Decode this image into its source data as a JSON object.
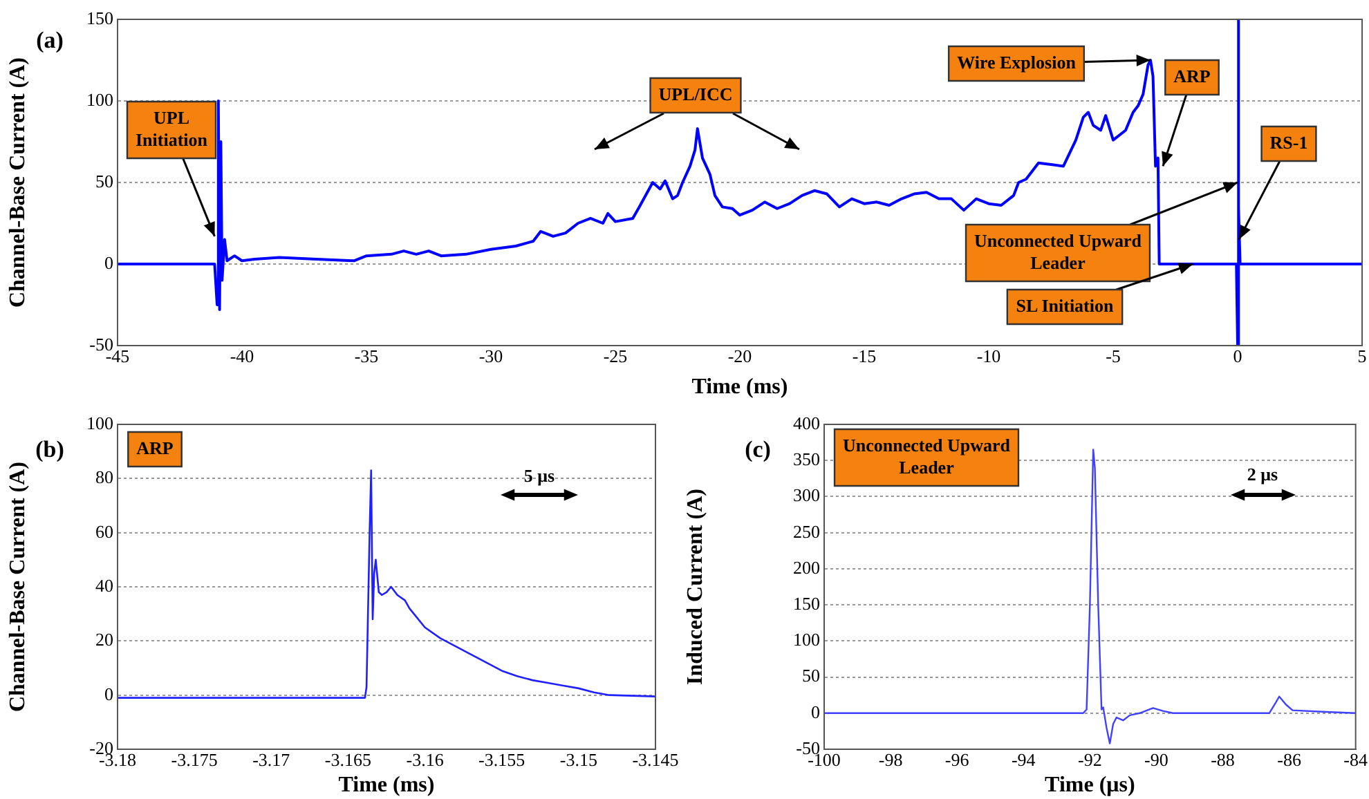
{
  "chart_data": [
    {
      "type": "line",
      "title": "(a)",
      "xlabel": "Time (ms)",
      "ylabel": "Channel-Base Current (A)",
      "marker": "none",
      "grid": "y",
      "x": [
        -45,
        -41.1,
        -41.0,
        -40.95,
        -40.9,
        -40.85,
        -40.8,
        -40.7,
        -40.6,
        -40.3,
        -40,
        -39.5,
        -38.5,
        -37,
        -35.5,
        -35,
        -34,
        -33.5,
        -33,
        -32.5,
        -32,
        -31,
        -30,
        -29,
        -28.3,
        -28,
        -27.5,
        -27,
        -26.5,
        -26,
        -25.5,
        -25.3,
        -25,
        -24.3,
        -24,
        -23.5,
        -23.2,
        -23,
        -22.7,
        -22.5,
        -22.3,
        -22,
        -21.8,
        -21.7,
        -21.5,
        -21.2,
        -21,
        -20.7,
        -20.3,
        -20,
        -19.5,
        -19,
        -18.5,
        -18,
        -17.5,
        -17,
        -16.5,
        -16,
        -15.5,
        -15,
        -14.5,
        -14,
        -13.5,
        -13,
        -12.5,
        -12,
        -11.5,
        -11,
        -10.5,
        -10,
        -9.5,
        -9,
        -8.8,
        -8.5,
        -8,
        -7.5,
        -7,
        -6.5,
        -6.2,
        -6,
        -5.8,
        -5.5,
        -5.3,
        -5,
        -4.5,
        -4.2,
        -4,
        -3.8,
        -3.6,
        -3.5,
        -3.4,
        -3.3,
        -3.2,
        -3.15,
        -3,
        -0.05,
        0,
        0.02,
        0.05,
        0.1,
        5
      ],
      "series": [
        {
          "color": "#0000ff",
          "values": [
            0,
            0,
            -25,
            100,
            -28,
            75,
            -10,
            15,
            2,
            5,
            2,
            3,
            4,
            3,
            2,
            5,
            6,
            8,
            6,
            8,
            5,
            6,
            9,
            11,
            14,
            20,
            17,
            19,
            25,
            28,
            25,
            31,
            26,
            28,
            36,
            50,
            46,
            51,
            40,
            42,
            50,
            60,
            70,
            83,
            65,
            55,
            42,
            35,
            34,
            30,
            33,
            38,
            34,
            37,
            42,
            45,
            43,
            35,
            40,
            37,
            38,
            36,
            40,
            43,
            44,
            40,
            40,
            33,
            40,
            37,
            36,
            42,
            50,
            52,
            62,
            61,
            60,
            76,
            90,
            93,
            85,
            82,
            91,
            76,
            82,
            93,
            97,
            104,
            122,
            125,
            115,
            60,
            65,
            0,
            0,
            0,
            -50,
            150,
            35,
            0,
            0
          ]
        }
      ],
      "xlim": [
        -45,
        5
      ],
      "ylim": [
        -50,
        150
      ],
      "xticks": [
        -45,
        -40,
        -35,
        -30,
        -25,
        -20,
        -15,
        -10,
        -5,
        0,
        5
      ],
      "yticks": [
        -50,
        0,
        50,
        100,
        150
      ],
      "annotations": [
        {
          "text": "UPL Initiation",
          "x": -41.1,
          "y": 17
        },
        "UPL/ICC",
        {
          "text": "Wire Explosion",
          "x": -3.5,
          "y": 125
        },
        {
          "text": "ARP",
          "x": -3.0,
          "y": 60
        },
        {
          "text": "Unconnected Upward Leader",
          "x": 0,
          "y": 50
        },
        {
          "text": "SL Initiation",
          "x": -1.8,
          "y": 0
        },
        {
          "text": "RS-1",
          "x": 0.05,
          "y": 15
        }
      ]
    },
    {
      "type": "line",
      "title": "(b)",
      "xlabel": "Time (ms)",
      "ylabel": "Channel-Base Current (A)",
      "marker": "none",
      "grid": "y",
      "x": [
        -3.18,
        -3.175,
        -3.17,
        -3.165,
        -3.1639,
        -3.1638,
        -3.1636,
        -3.1635,
        -3.1634,
        -3.1633,
        -3.1632,
        -3.163,
        -3.1628,
        -3.1625,
        -3.1622,
        -3.1618,
        -3.1613,
        -3.161,
        -3.16,
        -3.159,
        -3.158,
        -3.157,
        -3.156,
        -3.155,
        -3.154,
        -3.153,
        -3.152,
        -3.151,
        -3.15,
        -3.149,
        -3.148,
        -3.145
      ],
      "series": [
        {
          "color": "#1f1fff",
          "values": [
            -1,
            -1,
            -1,
            -1,
            -1,
            3,
            60,
            83,
            28,
            45,
            50,
            38,
            37,
            38,
            40,
            37,
            35,
            32,
            25,
            21,
            18,
            15,
            12,
            9,
            7,
            5.5,
            4.5,
            3.5,
            2.5,
            1,
            0,
            -0.5
          ]
        }
      ],
      "xlim": [
        -3.18,
        -3.145
      ],
      "ylim": [
        -20,
        100
      ],
      "xticks": [
        -3.18,
        -3.175,
        -3.17,
        -3.165,
        -3.16,
        -3.155,
        -3.15,
        -3.145
      ],
      "yticks": [
        -20,
        0,
        20,
        40,
        60,
        80,
        100
      ],
      "annotations": [
        "ARP",
        "5 μs"
      ]
    },
    {
      "type": "line",
      "title": "(c)",
      "xlabel": "Time (μs)",
      "ylabel": "Induced Current (A)",
      "marker": "none",
      "grid": "y",
      "x": [
        -100,
        -98,
        -96,
        -94,
        -92.2,
        -92.1,
        -92.0,
        -91.9,
        -91.85,
        -91.75,
        -91.65,
        -91.6,
        -91.5,
        -91.4,
        -91.3,
        -91.2,
        -91.0,
        -90.8,
        -90.5,
        -90.1,
        -89.8,
        -89.5,
        -88,
        -86.6,
        -86.4,
        -86.3,
        -86.1,
        -85.9,
        -85,
        -84
      ],
      "series": [
        {
          "color": "#4040ff",
          "values": [
            0,
            0,
            0,
            0,
            0,
            5,
            150,
            365,
            340,
            150,
            5,
            8,
            -20,
            -42,
            -15,
            -6,
            -10,
            -3,
            0,
            7,
            3,
            0,
            0,
            0,
            15,
            23,
            12,
            4,
            2,
            0
          ]
        }
      ],
      "xlim": [
        -100,
        -84
      ],
      "ylim": [
        -50,
        400
      ],
      "xticks": [
        -100,
        -98,
        -96,
        -94,
        -92,
        -90,
        -88,
        -86,
        -84
      ],
      "yticks": [
        -50,
        0,
        50,
        100,
        150,
        200,
        250,
        300,
        350,
        400
      ],
      "annotations": [
        "Unconnected Upward Leader",
        "2 μs"
      ]
    }
  ]
}
